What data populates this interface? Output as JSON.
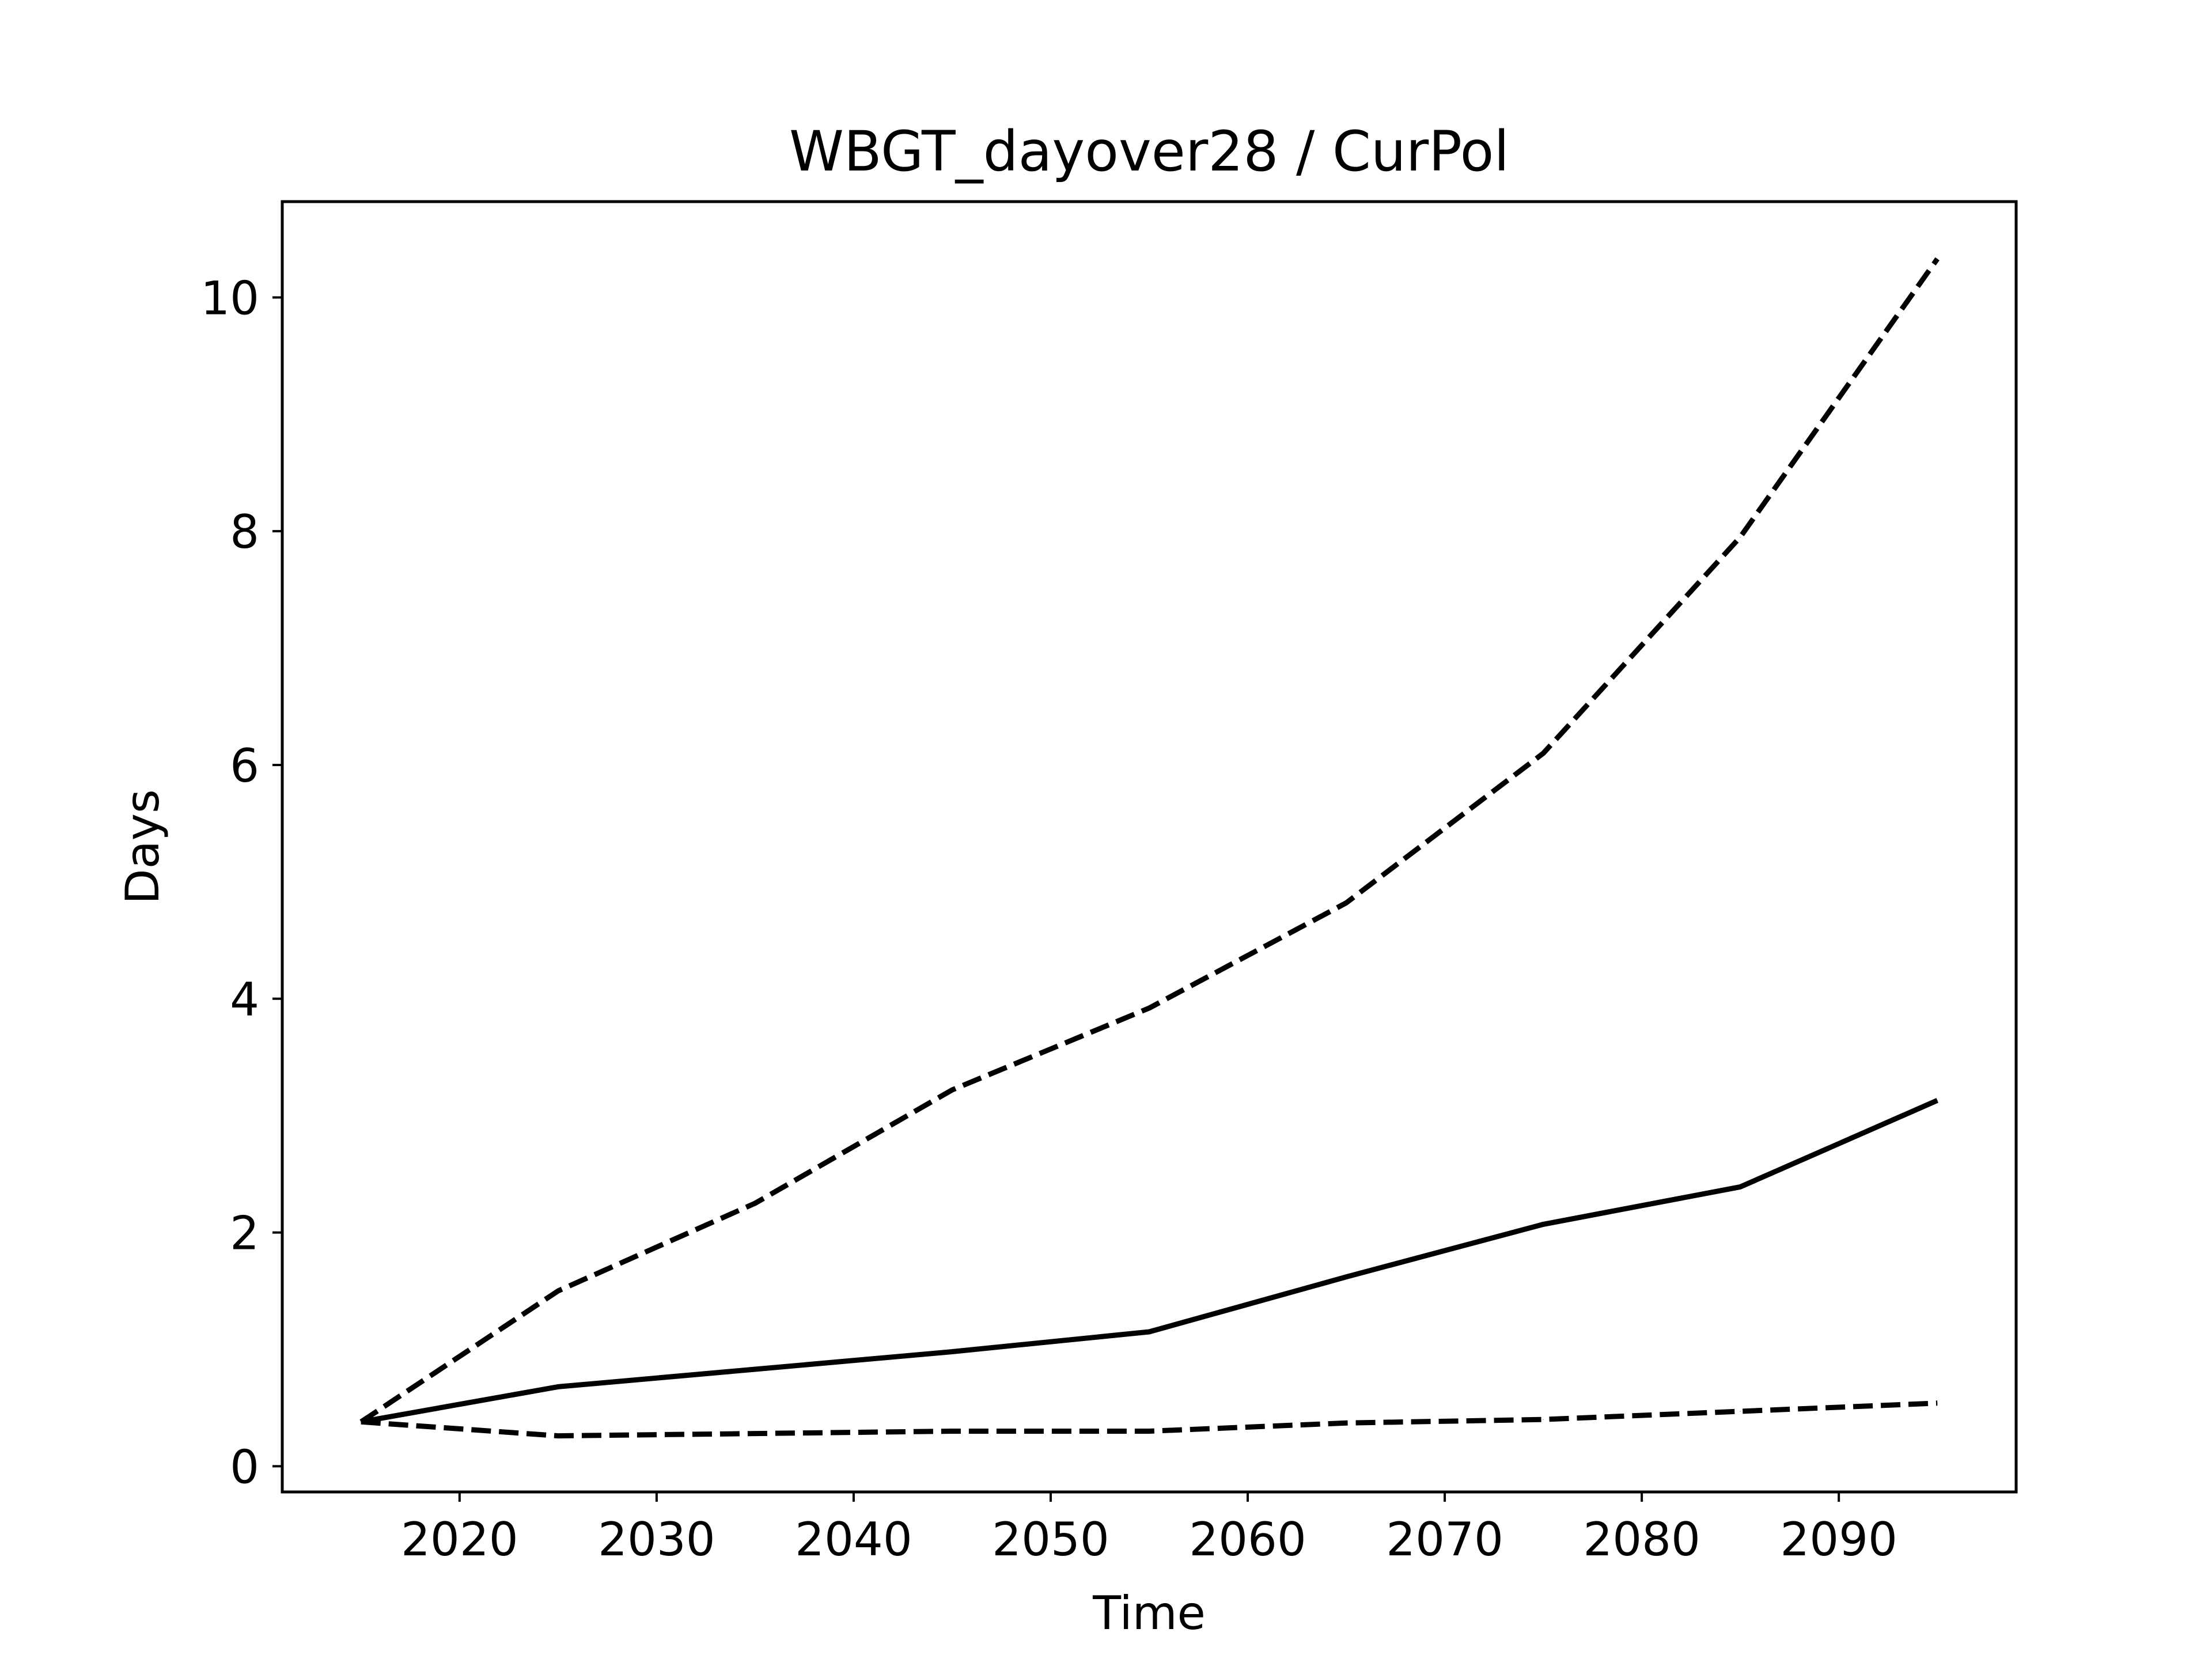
{
  "chart_data": {
    "type": "line",
    "title": "WBGT_dayover28 / CurPol",
    "xlabel": "Time",
    "ylabel": "Days",
    "xlim": [
      2011,
      2099
    ],
    "ylim": [
      -0.22,
      10.82
    ],
    "xticks": [
      2020,
      2030,
      2040,
      2050,
      2060,
      2070,
      2080,
      2090
    ],
    "yticks": [
      0,
      2,
      4,
      6,
      8,
      10
    ],
    "grid": false,
    "legend": "none",
    "x": [
      2015,
      2025,
      2035,
      2045,
      2055,
      2065,
      2075,
      2085,
      2095
    ],
    "series": [
      {
        "style": "solid",
        "color": "#000000",
        "values": [
          0.38,
          0.68,
          0.83,
          0.98,
          1.15,
          1.62,
          2.07,
          2.39,
          3.13
        ]
      },
      {
        "style": "dashed",
        "color": "#000000",
        "values": [
          0.38,
          1.5,
          2.25,
          3.22,
          3.92,
          4.82,
          6.1,
          7.95,
          10.33
        ]
      },
      {
        "style": "dashed",
        "color": "#000000",
        "values": [
          0.38,
          0.26,
          0.28,
          0.3,
          0.3,
          0.37,
          0.4,
          0.47,
          0.54
        ]
      }
    ]
  }
}
